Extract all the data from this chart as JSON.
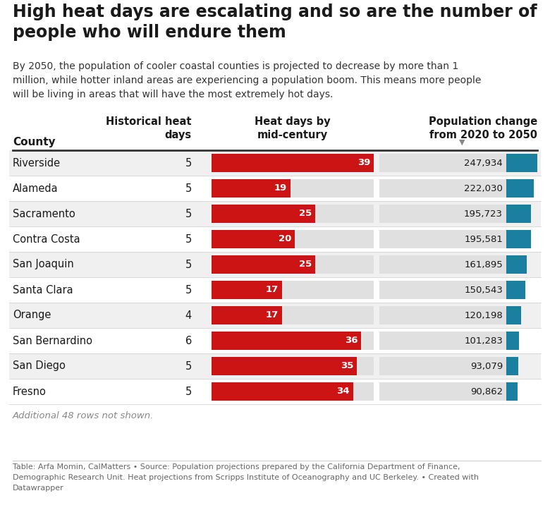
{
  "title": "High heat days are escalating and so are the number of\npeople who will endure them",
  "subtitle": "By 2050, the population of cooler coastal counties is projected to decrease by more than 1\nmillion, while hotter inland areas are experiencing a population boom. This means more people\nwill be living in areas that will have the most extremely hot days.",
  "col_county": "County",
  "col_hist": "Historical heat\ndays",
  "col_heat": "Heat days by\nmid-century",
  "col_pop": "Population change\nfrom 2020 to 2050",
  "counties": [
    "Riverside",
    "Alameda",
    "Sacramento",
    "Contra Costa",
    "San Joaquin",
    "Santa Clara",
    "Orange",
    "San Bernardino",
    "San Diego",
    "Fresno"
  ],
  "hist_days": [
    5,
    5,
    5,
    5,
    5,
    5,
    4,
    6,
    5,
    5
  ],
  "heat_days": [
    39,
    19,
    25,
    20,
    25,
    17,
    17,
    36,
    35,
    34
  ],
  "pop_change": [
    247934,
    222030,
    195723,
    195581,
    161895,
    150543,
    120198,
    101283,
    93079,
    90862
  ],
  "note": "Additional 48 rows not shown.",
  "footer": "Table: Arfa Momin, CalMatters • Source: Population projections prepared by the California Department of Finance,\nDemographic Research Unit. Heat projections from Scripps Institute of Oceanography and UC Berkeley. • Created with\nDatawrapper",
  "red_bar_color": "#cc1414",
  "blue_bar_color": "#1a7fa0",
  "row_bg_odd": "#f0f0f0",
  "row_bg_even": "#ffffff",
  "title_color": "#1a1a1a",
  "text_color": "#333333",
  "max_heat_days": 39,
  "max_pop_change": 247934
}
